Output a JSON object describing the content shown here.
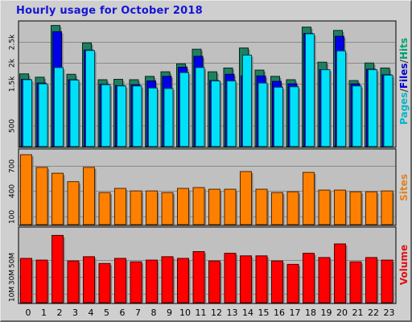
{
  "chart_data": {
    "type": "bar",
    "title": "Hourly usage for October 2018",
    "categories": [
      "0",
      "1",
      "2",
      "3",
      "4",
      "5",
      "6",
      "7",
      "8",
      "9",
      "10",
      "11",
      "12",
      "13",
      "14",
      "15",
      "16",
      "17",
      "18",
      "19",
      "20",
      "21",
      "22",
      "23"
    ],
    "panels": [
      {
        "id": "usage",
        "label_parts": [
          {
            "text": "Pages",
            "color": "#00b8c8"
          },
          {
            "text": "/",
            "color": "#404040"
          },
          {
            "text": "Files",
            "color": "#0000d0"
          },
          {
            "text": "/",
            "color": "#404040"
          },
          {
            "text": "Hits",
            "color": "#00a070"
          }
        ],
        "ylim": [
          0,
          2950
        ],
        "ticks": [
          500,
          1500,
          2000,
          2500
        ],
        "tick_labels": [
          "500",
          "1.5k",
          "2k",
          "2.5k"
        ],
        "series": [
          {
            "name": "Hits",
            "color": "#1e8060",
            "values": [
              1740,
              1660,
              2900,
              1730,
              2480,
              1600,
              1610,
              1600,
              1680,
              1790,
              1980,
              2330,
              1790,
              1880,
              2360,
              1830,
              1680,
              1600,
              2860,
              2020,
              2780,
              1580,
              2000,
              1880
            ]
          },
          {
            "name": "Files",
            "color": "#0000e8",
            "values": [
              1610,
              1520,
              2750,
              1600,
              2310,
              1490,
              1460,
              1480,
              1570,
              1680,
              1900,
              2160,
              1580,
              1730,
              1690,
              1690,
              1560,
              1500,
              2710,
              1840,
              2640,
              1500,
              1850,
              1720
            ]
          },
          {
            "name": "Pages",
            "color": "#00e0f8",
            "values": [
              1600,
              1500,
              1890,
              1590,
              2300,
              1480,
              1450,
              1450,
              1400,
              1390,
              1770,
              1890,
              1570,
              1570,
              2190,
              1520,
              1420,
              1430,
              2700,
              1840,
              2290,
              1450,
              1840,
              1710
            ]
          }
        ]
      },
      {
        "id": "sites",
        "label_parts": [
          {
            "text": "Sites",
            "color": "#e08020"
          }
        ],
        "ylim": [
          0,
          870
        ],
        "ticks": [
          100,
          400,
          700
        ],
        "tick_labels": [
          "100",
          "400",
          "700"
        ],
        "series": [
          {
            "name": "Sites",
            "color": "#ff8000",
            "values": [
              830,
              680,
              610,
              510,
              680,
              380,
              430,
              400,
              400,
              380,
              430,
              440,
              420,
              420,
              630,
              420,
              380,
              390,
              620,
              410,
              410,
              390,
              390,
              400
            ]
          }
        ]
      },
      {
        "id": "volume",
        "label_parts": [
          {
            "text": "Volume",
            "color": "#e01010"
          }
        ],
        "ylim": [
          0,
          86
        ],
        "ticks": [
          10,
          30,
          50
        ],
        "tick_labels": [
          "10M",
          "30M",
          "50M"
        ],
        "series": [
          {
            "name": "Volume",
            "color": "#ff0000",
            "values": [
              52,
              50,
              79,
              49,
              54,
              46,
              52,
              48,
              50,
              54,
              52,
              60,
              49,
              58,
              55,
              55,
              49,
              45,
              58,
              53,
              69,
              48,
              53,
              50
            ]
          }
        ]
      }
    ],
    "grid": true
  }
}
